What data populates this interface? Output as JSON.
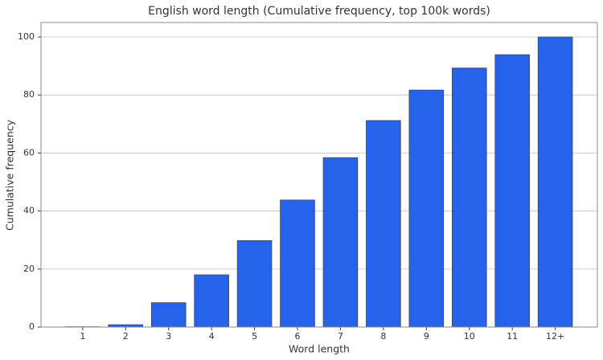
{
  "chart_data": {
    "type": "bar",
    "title": "English word length (Cumulative frequency, top 100k words)",
    "x_label": "Word length",
    "y_label": "Cumulative frequency",
    "categories": [
      "1",
      "2",
      "3",
      "4",
      "5",
      "6",
      "7",
      "8",
      "9",
      "10",
      "11",
      "12+"
    ],
    "values": [
      0.1,
      0.8,
      8.4,
      18.0,
      29.8,
      43.8,
      58.4,
      71.2,
      81.7,
      89.3,
      93.9,
      100
    ],
    "color": "#2563eb",
    "ylim": [
      0,
      105
    ],
    "yticks": [
      0,
      20,
      40,
      60,
      80,
      100
    ],
    "grid": true
  }
}
